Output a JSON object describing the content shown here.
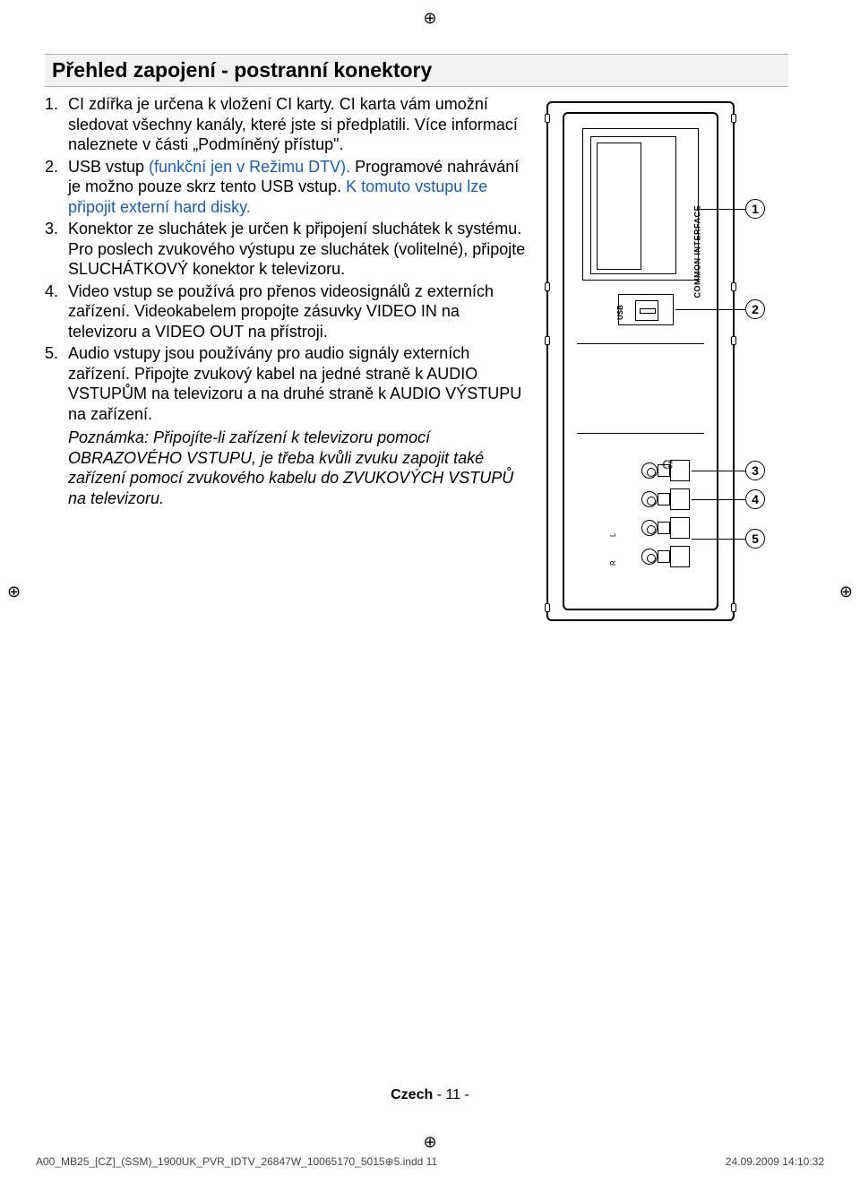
{
  "registration_mark": "⊕",
  "title": "Přehled zapojení - postranní konektory",
  "items": [
    {
      "num": "1.",
      "runs": [
        {
          "text": "CI zdířka je určena k vložení CI karty. CI karta vám umožní sledovat všechny kanály, které jste si předplatili. Více informací naleznete v části „Podmíněný přístup\"."
        }
      ]
    },
    {
      "num": "2.",
      "runs": [
        {
          "text": "USB vstup "
        },
        {
          "text": "(funkční jen v Režimu DTV). ",
          "class": "blue"
        },
        {
          "text": "Programové nahrávání je možno pouze skrz tento USB vstup. "
        },
        {
          "text": "K tomuto vstupu lze připojit externí hard disky.",
          "class": "blue"
        }
      ]
    },
    {
      "num": "3.",
      "runs": [
        {
          "text": "Konektor ze sluchátek je určen k připojení sluchátek k systému. Pro poslech zvukového výstupu ze sluchátek (volitelné), připojte SLUCHÁTKOVÝ konektor k televizoru."
        }
      ]
    },
    {
      "num": "4.",
      "runs": [
        {
          "text": "Video vstup se používá pro přenos videosignálů z externích zařízení. Videokabelem propojte zásuvky VIDEO IN na televizoru a VIDEO OUT na přístroji."
        }
      ]
    },
    {
      "num": "5.",
      "runs": [
        {
          "text": "Audio vstupy jsou používány pro audio signály externích zařízení. Připojte zvukový kabel na jedné straně k AUDIO VSTUPŮM na televizoru a na druhé straně k AUDIO VÝSTUPU na zařízení."
        }
      ],
      "note": "Poznámka: Připojíte-li zařízení k televizoru pomocí OBRAZOVÉHO VSTUPU, je třeba kvůli zvuku zapojit také zařízení pomocí zvukového kabelu do ZVUKOVÝCH VSTUPŮ na televizoru."
    }
  ],
  "diagram": {
    "ci_label": "COMMON INTERFACE",
    "usb_label": "USB",
    "jack_hp": "♫",
    "jack_v_label": " ",
    "jack_l_label": "L",
    "jack_r_label": "R",
    "callouts": [
      "1",
      "2",
      "3",
      "4",
      "5"
    ]
  },
  "footer": {
    "lang": "Czech",
    "sep": "  - ",
    "page": "11",
    "trail": " -"
  },
  "print": {
    "file": "A00_MB25_[CZ]_(SSM)_1900UK_PVR_IDTV_26847W_10065170_5015⊕5.indd   11",
    "ts": "24.09.2009   14:10:32"
  }
}
